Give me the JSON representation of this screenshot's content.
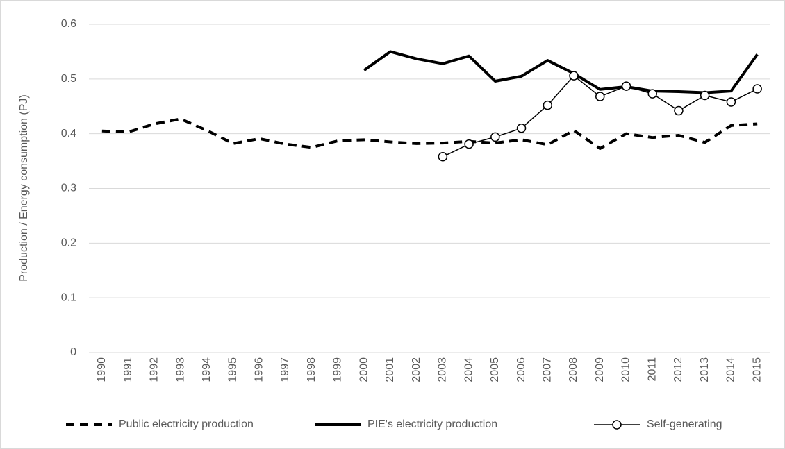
{
  "chart_data": {
    "type": "line",
    "y_label": "Production / Energy consumption (PJ)",
    "categories": [
      "1990",
      "1991",
      "1992",
      "1993",
      "1994",
      "1995",
      "1996",
      "1997",
      "1998",
      "1999",
      "2000",
      "2001",
      "2002",
      "2003",
      "2004",
      "2005",
      "2006",
      "2007",
      "2008",
      "2009",
      "2010",
      "2011",
      "2012",
      "2013",
      "2014",
      "2015"
    ],
    "series": [
      {
        "name": "Public electricity production",
        "color": "#000000",
        "line_style": "dashed",
        "line_width": 4,
        "values": [
          0.405,
          0.403,
          0.418,
          0.427,
          0.406,
          0.382,
          0.391,
          0.381,
          0.375,
          0.387,
          0.389,
          0.385,
          0.382,
          0.383,
          0.386,
          0.383,
          0.389,
          0.38,
          0.406,
          0.373,
          0.4,
          0.393,
          0.397,
          0.384,
          0.415,
          0.418
        ]
      },
      {
        "name": "PIE's electricity production",
        "color": "#000000",
        "line_style": "solid",
        "line_width": 4,
        "values": [
          null,
          null,
          null,
          null,
          null,
          null,
          null,
          null,
          null,
          null,
          0.516,
          0.55,
          0.537,
          0.528,
          0.542,
          0.496,
          0.505,
          0.534,
          0.51,
          0.481,
          0.486,
          0.478,
          0.477,
          0.475,
          0.478,
          0.545
        ]
      },
      {
        "name": "Self-generating",
        "color": "#000000",
        "line_style": "solid",
        "line_width": 1.5,
        "marker": "circle",
        "values": [
          null,
          null,
          null,
          null,
          null,
          null,
          null,
          null,
          null,
          null,
          null,
          null,
          null,
          0.358,
          0.381,
          0.394,
          0.41,
          0.452,
          0.506,
          0.468,
          0.487,
          0.473,
          0.442,
          0.47,
          0.458,
          0.482
        ]
      }
    ],
    "ylim": [
      0,
      0.6
    ],
    "yticks": [
      0,
      0.1,
      0.2,
      0.3,
      0.4,
      0.5,
      0.6
    ],
    "grid": true,
    "legend": "bottom"
  }
}
